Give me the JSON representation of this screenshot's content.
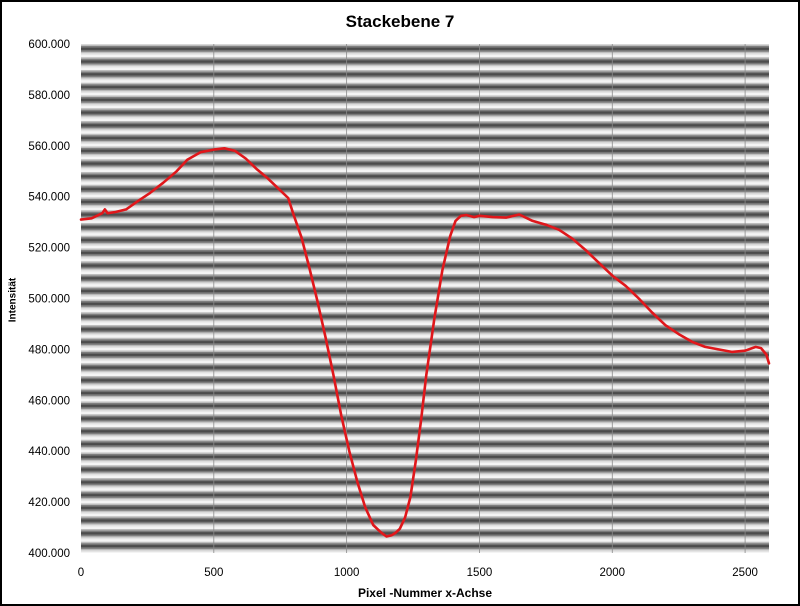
{
  "chart_data": {
    "type": "line",
    "title": "Stackebene 7",
    "xlabel": "Pixel -Nummer x-Achse",
    "ylabel": "Intensität",
    "xlim": [
      0,
      2590
    ],
    "ylim": [
      400000,
      600000
    ],
    "x_ticks": [
      0,
      500,
      1000,
      1500,
      2000,
      2500
    ],
    "x_tick_labels": [
      "0",
      "500",
      "1000",
      "1500",
      "2000",
      "2500"
    ],
    "y_ticks": [
      400000,
      420000,
      440000,
      460000,
      480000,
      500000,
      520000,
      540000,
      560000,
      580000,
      600000
    ],
    "y_tick_labels": [
      "400.000",
      "420.000",
      "440.000",
      "460.000",
      "480.000",
      "500.000",
      "520.000",
      "540.000",
      "560.000",
      "580.000",
      "600.000"
    ],
    "background": "horizontal grating stripes (dark/light), vertical gridlines at x ticks",
    "series": [
      {
        "color": "#e0171b",
        "x": [
          0,
          40,
          80,
          90,
          100,
          130,
          170,
          210,
          260,
          310,
          360,
          400,
          450,
          500,
          540,
          580,
          620,
          660,
          700,
          740,
          780,
          800,
          830,
          860,
          890,
          920,
          950,
          980,
          1010,
          1040,
          1070,
          1100,
          1130,
          1150,
          1170,
          1185,
          1200,
          1220,
          1240,
          1260,
          1280,
          1300,
          1330,
          1360,
          1390,
          1410,
          1430,
          1450,
          1480,
          1500,
          1550,
          1600,
          1650,
          1700,
          1750,
          1800,
          1850,
          1900,
          1950,
          2000,
          2050,
          2100,
          2150,
          2200,
          2250,
          2300,
          2350,
          2400,
          2450,
          2500,
          2540,
          2560,
          2580,
          2590
        ],
        "y": [
          531000,
          531500,
          533500,
          535000,
          533500,
          534000,
          535000,
          538000,
          541500,
          545500,
          550000,
          554500,
          557500,
          558500,
          559000,
          558000,
          555000,
          551000,
          547500,
          543500,
          539500,
          533000,
          524000,
          512000,
          499000,
          485000,
          470000,
          454000,
          440000,
          428000,
          418000,
          411000,
          408000,
          406500,
          407000,
          408000,
          409500,
          414000,
          422000,
          436000,
          452000,
          470000,
          492000,
          511000,
          524500,
          530500,
          532500,
          532800,
          532000,
          532500,
          532000,
          531800,
          533000,
          530500,
          529000,
          527000,
          523500,
          519000,
          514000,
          509000,
          505000,
          500000,
          494500,
          489500,
          486000,
          483000,
          481000,
          480000,
          479000,
          479500,
          481000,
          480500,
          478000,
          474500
        ]
      }
    ]
  }
}
